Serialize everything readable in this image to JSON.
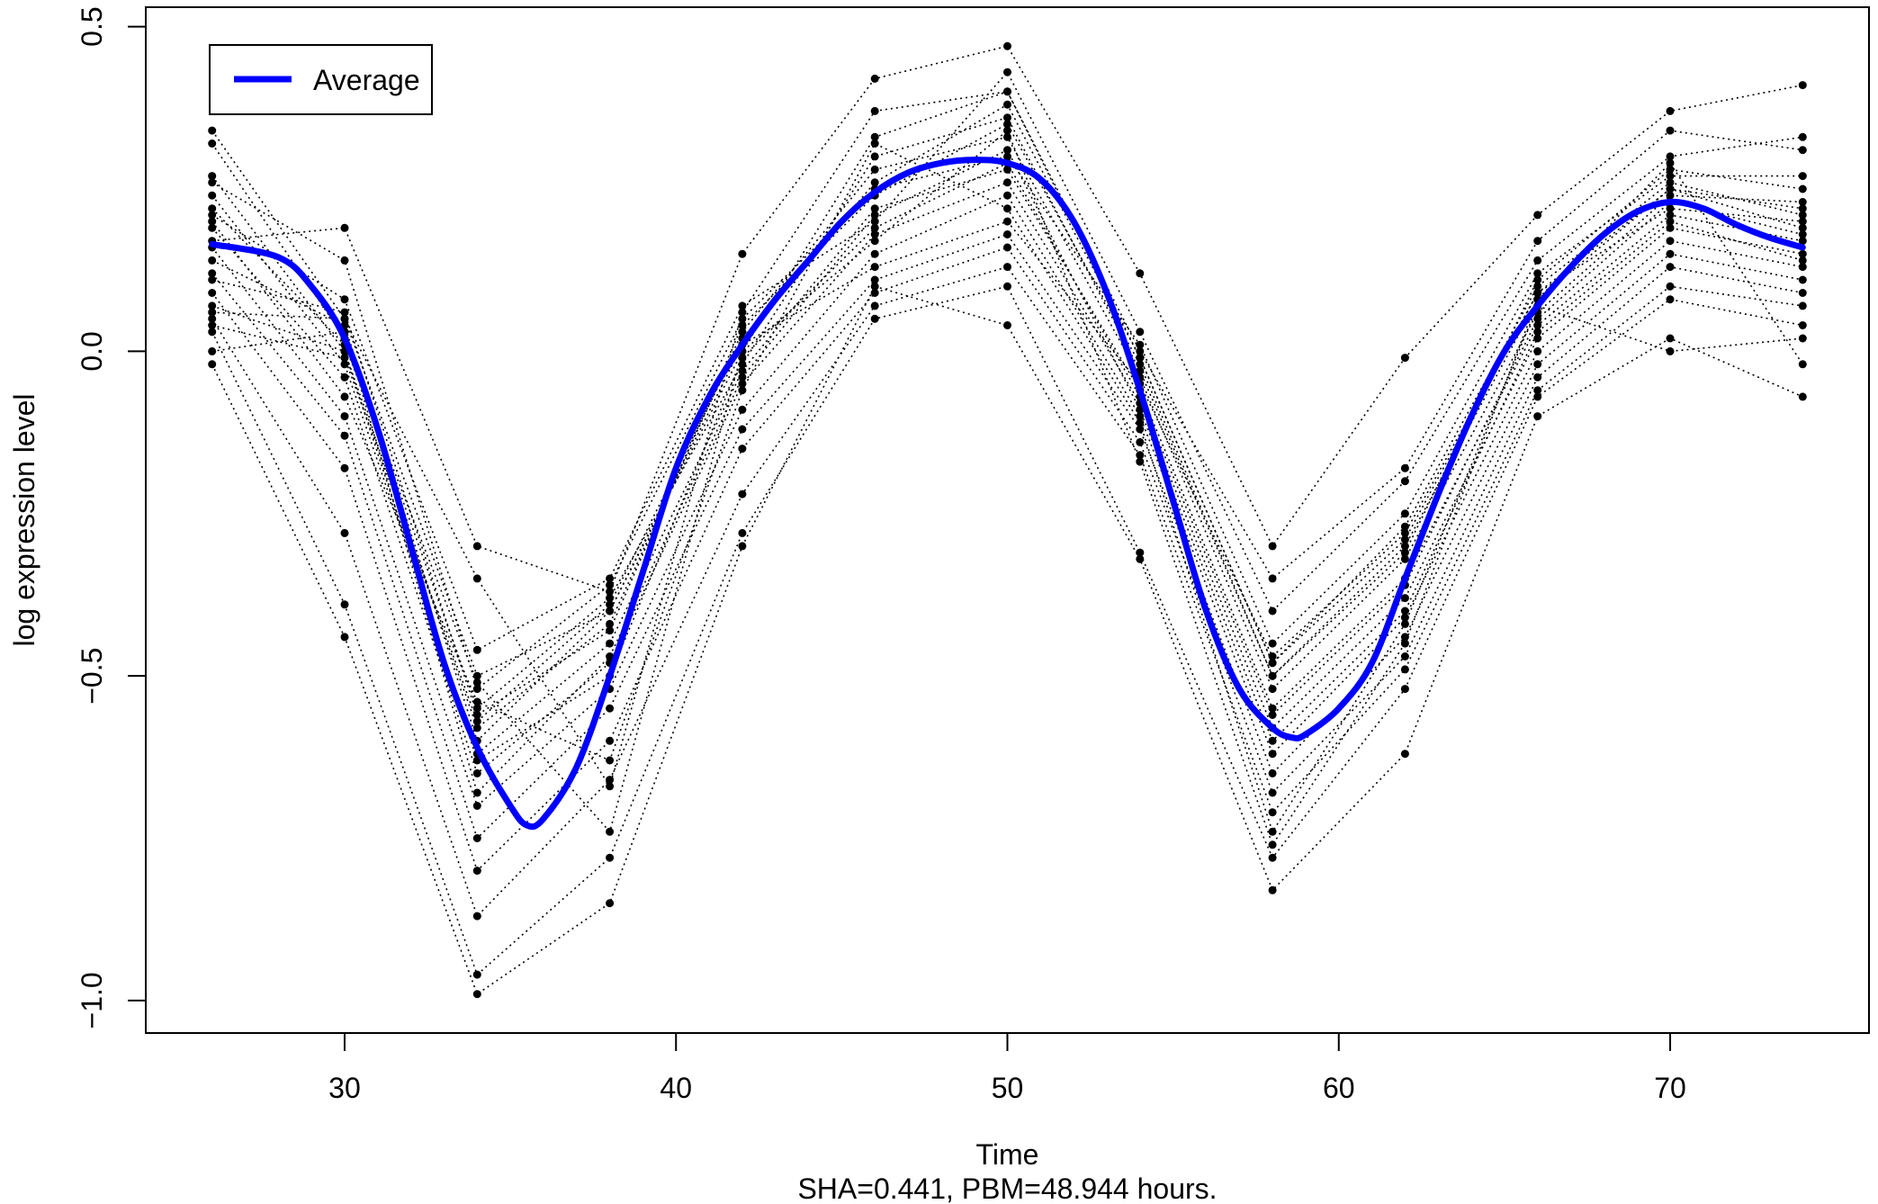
{
  "chart_data": {
    "type": "line",
    "xlabel": "Time",
    "ylabel": "log expression level",
    "subtitle": "SHA=0.441, PBM=48.944 hours.",
    "xlim": [
      24.0,
      76.0
    ],
    "ylim": [
      -1.05,
      0.53
    ],
    "x_ticks": [
      30,
      40,
      50,
      60,
      70
    ],
    "x_tick_labels": [
      "30",
      "40",
      "50",
      "60",
      "70"
    ],
    "y_ticks": [
      -1.0,
      -0.5,
      0.0,
      0.5
    ],
    "y_tick_labels": [
      "−1.0",
      "−0.5",
      "0.0",
      "0.5"
    ],
    "grid": false,
    "legend": {
      "position": "top-left",
      "entries": [
        "Average"
      ]
    },
    "colors": {
      "average": "#0000ff",
      "points": "#000000",
      "individual_lines": "#000000"
    },
    "time_points": [
      26,
      30,
      34,
      38,
      42,
      46,
      50,
      54,
      58,
      62,
      66,
      70,
      74
    ],
    "individual_series": [
      [
        0.34,
        0.05,
        -0.5,
        -0.4,
        0.0,
        0.33,
        0.4,
        -0.01,
        -0.48,
        -0.27,
        0.1,
        0.26,
        0.21
      ],
      [
        0.32,
        0.02,
        -0.55,
        -0.38,
        -0.02,
        0.3,
        0.36,
        -0.03,
        -0.5,
        -0.3,
        0.08,
        0.25,
        0.19
      ],
      [
        0.27,
        0.0,
        -0.58,
        -0.42,
        0.03,
        0.28,
        0.33,
        -0.04,
        -0.52,
        -0.32,
        0.06,
        0.24,
        0.23
      ],
      [
        0.26,
        0.14,
        -0.52,
        -0.36,
        0.05,
        0.25,
        0.3,
        0.01,
        -0.45,
        -0.25,
        0.12,
        0.27,
        0.27
      ],
      [
        0.24,
        -0.02,
        -0.62,
        -0.45,
        -0.03,
        0.22,
        0.28,
        -0.06,
        -0.55,
        -0.35,
        0.04,
        0.21,
        0.17
      ],
      [
        0.21,
        0.08,
        -0.46,
        -0.35,
        0.07,
        0.2,
        0.43,
        0.03,
        -0.4,
        -0.2,
        0.14,
        0.3,
        0.33
      ],
      [
        0.19,
        -0.04,
        -0.65,
        -0.48,
        -0.05,
        0.18,
        0.26,
        -0.08,
        -0.58,
        -0.38,
        0.02,
        0.19,
        0.15
      ],
      [
        0.17,
        0.19,
        -0.3,
        -0.37,
        0.15,
        0.42,
        0.47,
        0.12,
        -0.3,
        -0.01,
        0.21,
        0.37,
        0.41
      ],
      [
        0.16,
        -0.1,
        -0.7,
        -0.52,
        -0.09,
        0.15,
        0.24,
        -0.1,
        -0.62,
        -0.41,
        0.0,
        0.17,
        0.13
      ],
      [
        0.14,
        0.04,
        -0.6,
        -0.4,
        0.01,
        0.13,
        0.2,
        -0.05,
        -0.47,
        -0.28,
        0.09,
        0.22,
        0.2
      ],
      [
        0.12,
        -0.13,
        -0.75,
        -0.55,
        -0.12,
        0.11,
        0.18,
        -0.12,
        -0.65,
        -0.44,
        -0.02,
        0.15,
        0.11
      ],
      [
        0.11,
        0.06,
        -0.56,
        -0.43,
        0.04,
        0.24,
        0.35,
        -0.02,
        -0.5,
        -0.31,
        0.11,
        0.28,
        0.25
      ],
      [
        0.09,
        -0.18,
        -0.8,
        -0.6,
        -0.15,
        0.09,
        0.16,
        -0.14,
        -0.68,
        -0.47,
        -0.04,
        0.13,
        0.09
      ],
      [
        0.07,
        0.0,
        -0.63,
        -0.5,
        -0.01,
        0.19,
        0.29,
        -0.07,
        -0.56,
        -0.36,
        0.05,
        0.23,
        0.18
      ],
      [
        0.05,
        -0.28,
        -0.87,
        -0.66,
        -0.22,
        0.07,
        0.13,
        -0.16,
        -0.71,
        -0.49,
        -0.06,
        0.1,
        0.07
      ],
      [
        0.04,
        -0.01,
        -0.57,
        -0.39,
        0.02,
        0.26,
        0.38,
        -0.01,
        -0.48,
        -0.29,
        0.09,
        0.25,
        0.22
      ],
      [
        0.03,
        -0.39,
        -0.96,
        -0.78,
        -0.28,
        0.05,
        0.1,
        -0.31,
        -0.78,
        -0.52,
        -0.07,
        0.08,
        0.04
      ],
      [
        0.0,
        0.03,
        -0.68,
        -0.47,
        -0.04,
        0.21,
        0.31,
        -0.09,
        -0.6,
        -0.4,
        0.03,
        0.2,
        0.14
      ],
      [
        -0.02,
        -0.44,
        -0.99,
        -0.85,
        -0.3,
        0.1,
        0.04,
        -0.32,
        -0.83,
        -0.62,
        -0.1,
        0.02,
        -0.07
      ],
      [
        0.06,
        0.05,
        -0.35,
        -0.67,
        0.06,
        0.37,
        0.4,
        0.0,
        -0.35,
        -0.18,
        0.17,
        0.34,
        0.31
      ],
      [
        0.2,
        -0.07,
        -0.54,
        -0.63,
        -0.06,
        0.32,
        0.22,
        -0.11,
        -0.74,
        -0.42,
        0.07,
        0.0,
        0.02
      ],
      [
        0.22,
        0.01,
        -0.51,
        -0.74,
        0.0,
        0.17,
        0.34,
        -0.17,
        -0.76,
        -0.45,
        0.08,
        0.29,
        -0.02
      ]
    ],
    "average_curve": {
      "name": "Average",
      "x": [
        26,
        28,
        29,
        30,
        31,
        32,
        33,
        34,
        35,
        35.5,
        36,
        37,
        38,
        39,
        40,
        41,
        42,
        43,
        44,
        45,
        46,
        47,
        48,
        49,
        50,
        51,
        52,
        53,
        54,
        55,
        56,
        57,
        58,
        58.6,
        59,
        60,
        61,
        62,
        63,
        64,
        65,
        66,
        67,
        68,
        69,
        70,
        71,
        72,
        73,
        74
      ],
      "y": [
        0.165,
        0.145,
        0.1,
        0.02,
        -0.12,
        -0.3,
        -0.48,
        -0.61,
        -0.7,
        -0.73,
        -0.72,
        -0.64,
        -0.5,
        -0.34,
        -0.18,
        -0.07,
        0.01,
        0.08,
        0.14,
        0.2,
        0.245,
        0.275,
        0.29,
        0.295,
        0.29,
        0.265,
        0.2,
        0.09,
        -0.06,
        -0.23,
        -0.4,
        -0.52,
        -0.58,
        -0.595,
        -0.59,
        -0.55,
        -0.48,
        -0.35,
        -0.22,
        -0.1,
        0.0,
        0.07,
        0.13,
        0.18,
        0.215,
        0.23,
        0.22,
        0.195,
        0.175,
        0.16
      ]
    }
  }
}
